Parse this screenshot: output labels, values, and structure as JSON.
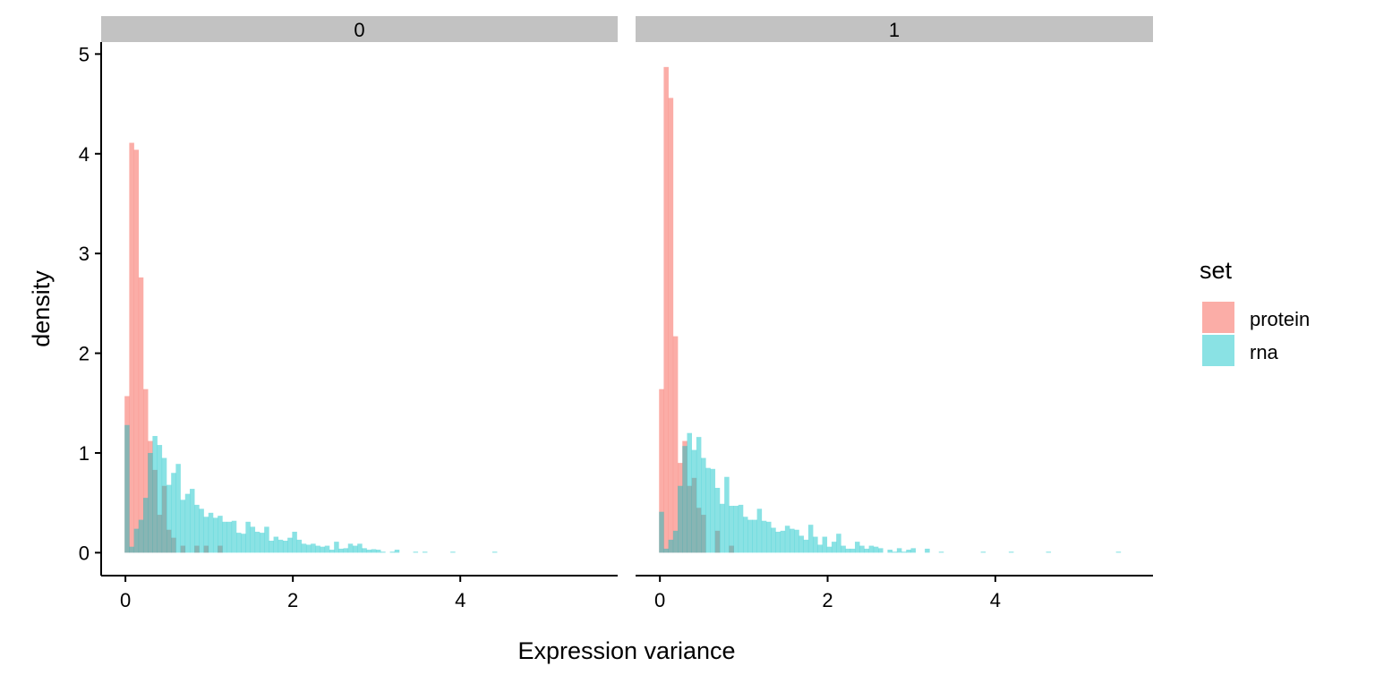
{
  "chart_data": {
    "type": "bar",
    "subtype": "faceted overlapping histogram",
    "xlabel": "Expression variance",
    "ylabel": "density",
    "xlim": [
      -0.29,
      5.88
    ],
    "ylim": [
      -0.23,
      5.12
    ],
    "x_ticks": [
      0,
      2,
      4
    ],
    "y_ticks": [
      0,
      1,
      2,
      3,
      4,
      5
    ],
    "grid": false,
    "bin_start": -0.01,
    "bin_width": 0.0556,
    "legend": {
      "title": "set",
      "placement": "right",
      "entries": [
        {
          "label": "protein",
          "color": "#F8766D"
        },
        {
          "label": "rna",
          "color": "#00BFC4"
        }
      ]
    },
    "facets": [
      {
        "label": "0",
        "series": [
          {
            "name": "protein",
            "values": [
              1.57,
              4.11,
              4.04,
              2.76,
              1.64,
              1.12,
              0.83,
              0.38,
              0.67,
              0.23,
              0.15,
              0,
              0.07,
              0,
              0,
              0.07,
              0,
              0.07,
              0,
              0,
              0.07
            ]
          },
          {
            "name": "rna",
            "values": [
              1.28,
              0.06,
              0.24,
              0.33,
              0.55,
              1.0,
              1.17,
              1.08,
              0.95,
              0.68,
              0.8,
              0.89,
              0.53,
              0.59,
              0.64,
              0.48,
              0.44,
              0.36,
              0.4,
              0.35,
              0.37,
              0.31,
              0.31,
              0.32,
              0.2,
              0.19,
              0.31,
              0.26,
              0.21,
              0.2,
              0.26,
              0.12,
              0.16,
              0.13,
              0.12,
              0.15,
              0.21,
              0.13,
              0.09,
              0.08,
              0.09,
              0.07,
              0.06,
              0.07,
              0.03,
              0.11,
              0.04,
              0.045,
              0.09,
              0.07,
              0.09,
              0.045,
              0.03,
              0.035,
              0.03,
              0.01,
              0,
              0.01,
              0.03,
              0,
              0,
              0,
              0.01,
              0,
              0.01,
              0,
              0,
              0,
              0,
              0,
              0.01,
              0,
              0,
              0,
              0,
              0,
              0,
              0,
              0,
              0.01
            ]
          }
        ]
      },
      {
        "label": "1",
        "series": [
          {
            "name": "protein",
            "values": [
              1.64,
              4.87,
              4.56,
              2.17,
              0.9,
              1.12,
              0.67,
              0.75,
              0.45,
              0.38,
              0,
              0,
              0.22,
              0,
              0,
              0.07
            ]
          },
          {
            "name": "rna",
            "values": [
              0.41,
              0.04,
              0.13,
              0.22,
              0.67,
              1.07,
              1.2,
              1.03,
              1.16,
              0.95,
              0.85,
              0.84,
              0.65,
              0.49,
              0.76,
              0.47,
              0.47,
              0.48,
              0.36,
              0.33,
              0.33,
              0.44,
              0.32,
              0.31,
              0.25,
              0.21,
              0.22,
              0.27,
              0.24,
              0.23,
              0.17,
              0.13,
              0.28,
              0.16,
              0.08,
              0.16,
              0.06,
              0.11,
              0.19,
              0.07,
              0.04,
              0.04,
              0.11,
              0.07,
              0.04,
              0.07,
              0.06,
              0.045,
              0,
              0.03,
              0.01,
              0.045,
              0.01,
              0.03,
              0.045,
              0,
              0,
              0.04,
              0,
              0,
              0.01,
              0,
              0,
              0,
              0,
              0,
              0,
              0,
              0,
              0.01,
              0,
              0,
              0,
              0,
              0,
              0.01,
              0,
              0,
              0,
              0,
              0,
              0,
              0,
              0.01,
              0,
              0,
              0,
              0,
              0,
              0,
              0,
              0,
              0,
              0,
              0,
              0,
              0,
              0,
              0.01
            ]
          }
        ]
      }
    ]
  }
}
